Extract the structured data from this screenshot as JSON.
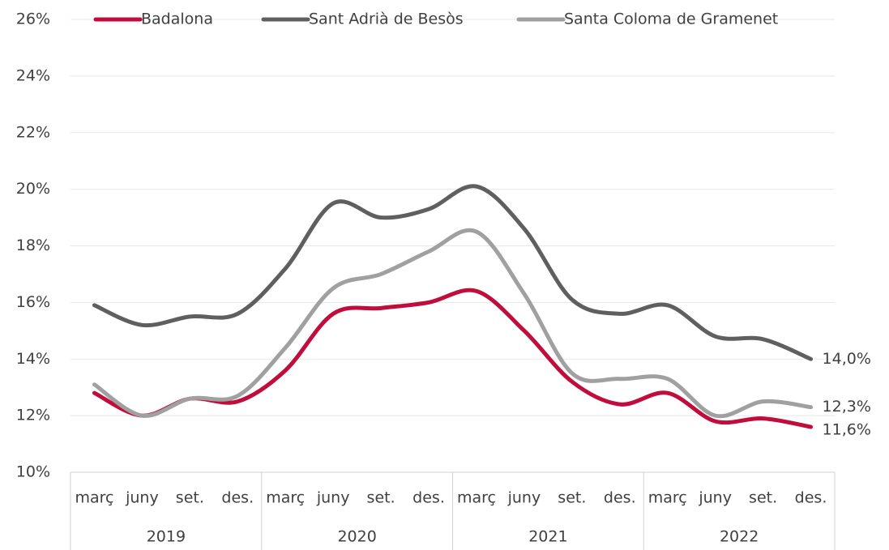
{
  "chart_data": {
    "type": "line",
    "categories": [
      "març",
      "juny",
      "set.",
      "des.",
      "març",
      "juny",
      "set.",
      "des.",
      "març",
      "juny",
      "set.",
      "des.",
      "març",
      "juny",
      "set.",
      "des."
    ],
    "category_groups": [
      "2019",
      "2020",
      "2021",
      "2022"
    ],
    "series": [
      {
        "name": "Badalona",
        "color": "#c00d3c",
        "values": [
          12.8,
          12.0,
          12.6,
          12.5,
          13.6,
          15.6,
          15.8,
          16.0,
          16.4,
          15.0,
          13.2,
          12.4,
          12.8,
          11.8,
          11.9,
          11.6
        ],
        "value_labels": [
          null,
          null,
          null,
          null,
          null,
          null,
          null,
          null,
          null,
          null,
          null,
          null,
          null,
          null,
          null,
          "11,6%"
        ]
      },
      {
        "name": "Sant Adrià de Besòs",
        "color": "#5f5f5f",
        "values": [
          15.9,
          15.2,
          15.5,
          15.6,
          17.2,
          19.5,
          19.0,
          19.3,
          20.1,
          18.6,
          16.1,
          15.6,
          15.9,
          14.8,
          14.7,
          14.0
        ],
        "value_labels": [
          null,
          null,
          null,
          null,
          null,
          null,
          null,
          null,
          null,
          null,
          null,
          null,
          null,
          null,
          null,
          "14,0%"
        ]
      },
      {
        "name": "Santa Coloma de Gramenet",
        "color": "#a0a0a0",
        "values": [
          13.1,
          12.0,
          12.6,
          12.7,
          14.4,
          16.5,
          17.0,
          17.8,
          18.5,
          16.3,
          13.5,
          13.3,
          13.3,
          12.0,
          12.5,
          12.3
        ],
        "value_labels": [
          null,
          null,
          null,
          null,
          null,
          null,
          null,
          null,
          null,
          null,
          null,
          null,
          null,
          null,
          null,
          "12,3%"
        ]
      }
    ],
    "ylim": [
      10,
      26
    ],
    "yticks": [
      {
        "value": 10,
        "label": "10%"
      },
      {
        "value": 12,
        "label": "12%"
      },
      {
        "value": 14,
        "label": "14%"
      },
      {
        "value": 16,
        "label": "16%"
      },
      {
        "value": 18,
        "label": "18%"
      },
      {
        "value": 20,
        "label": "20%"
      },
      {
        "value": 22,
        "label": "22%"
      },
      {
        "value": 24,
        "label": "24%"
      },
      {
        "value": 26,
        "label": "26%"
      }
    ],
    "grid": true,
    "legend": "top"
  }
}
